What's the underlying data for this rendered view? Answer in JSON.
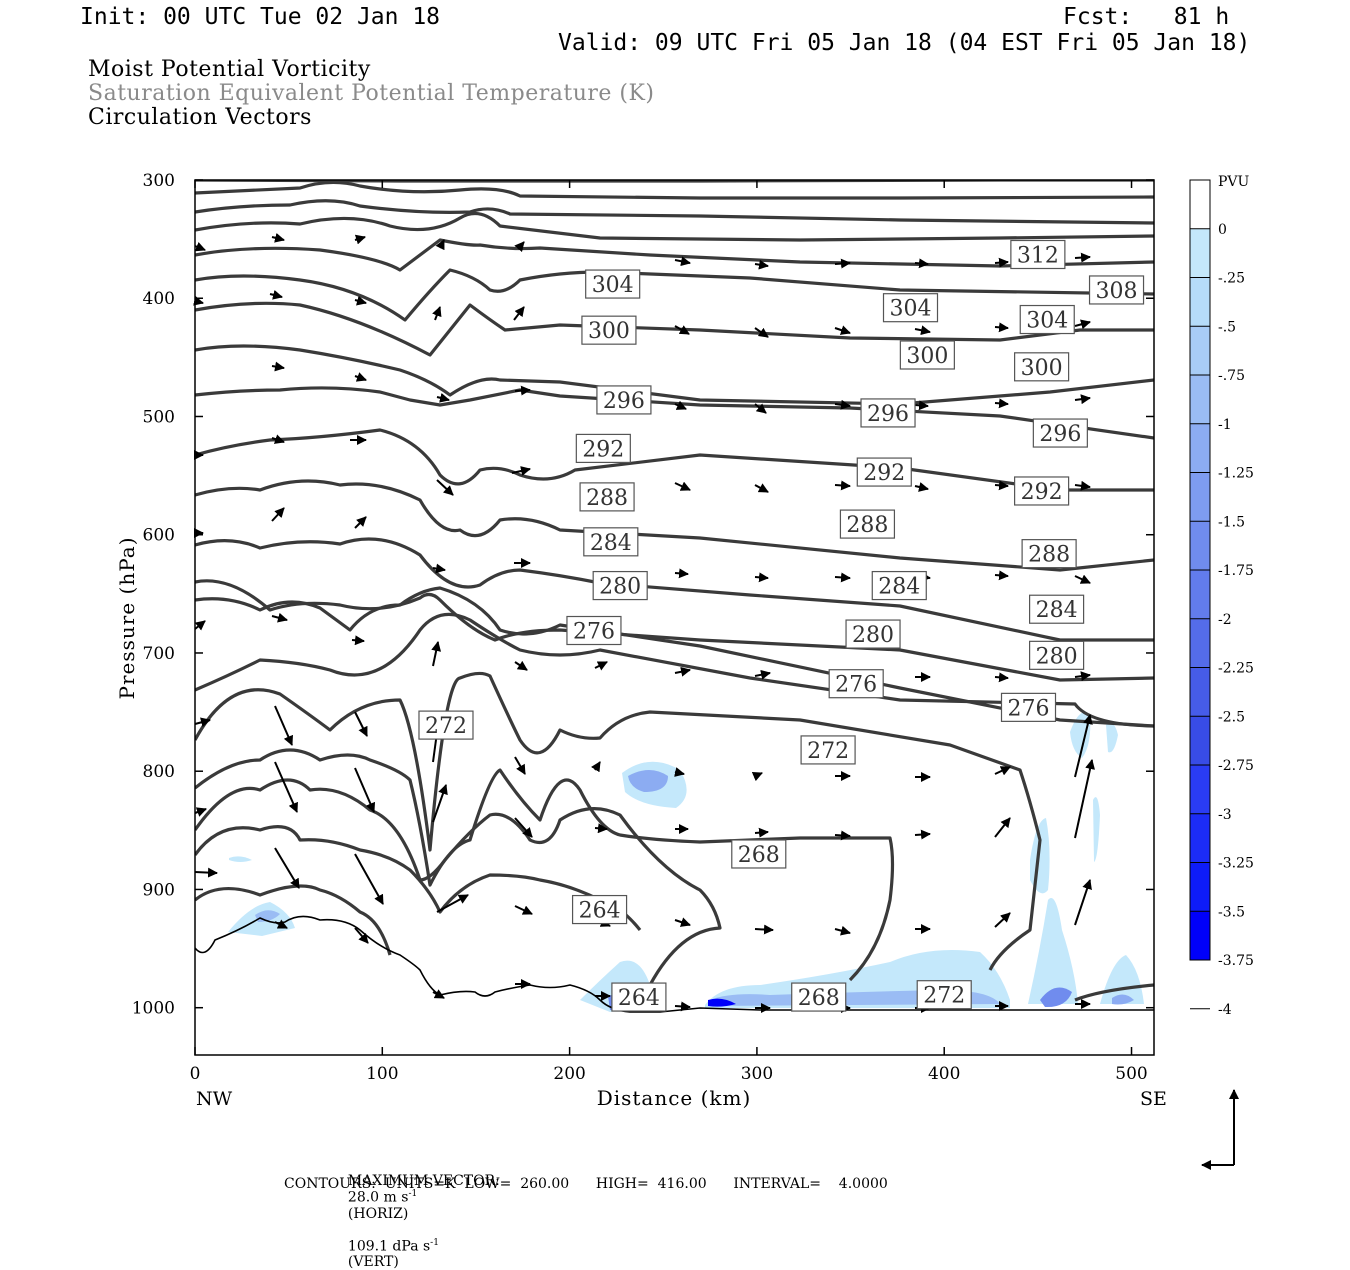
{
  "header": {
    "init": "Init: 00 UTC Tue 02 Jan 18",
    "fcst": "Fcst:   81 h",
    "valid": "Valid: 09 UTC Fri 05 Jan 18 (04 EST Fri 05 Jan 18)"
  },
  "titles": {
    "line1": "Moist Potential Vorticity",
    "line2": "Saturation Equivalent Potential Temperature (K)",
    "line3": "Circulation Vectors"
  },
  "footer": {
    "max_vector_label": "MAXIMUM VECTOR:",
    "max_vector_horiz": "28.0 m s",
    "horiz_tag": "(HORIZ)",
    "max_vector_vert": "109.1 dPa s",
    "vert_tag": "(VERT)",
    "contours": "CONTOURS:  UNITS=K  LOW=  260.00      HIGH=  416.00      INTERVAL=    4.0000"
  },
  "colors": {
    "contour": "#3a3a3a",
    "pv_light": "#bfe3fb",
    "pv_dark": "#0000f0"
  },
  "chart_data": {
    "type": "contour",
    "ylabel": "Pressure (hPa)",
    "xlabel": "Distance (km)",
    "x_left_label": "NW",
    "x_right_label": "SE",
    "xlim": [
      0,
      512
    ],
    "ylim": [
      1040,
      300
    ],
    "x_ticks": [
      0,
      100,
      200,
      300,
      400,
      500
    ],
    "y_ticks": [
      300,
      400,
      500,
      600,
      700,
      800,
      900,
      1000
    ],
    "colorbar": {
      "unit": "PVU",
      "ticks": [
        "0",
        "-.25",
        "-.5",
        "-.75",
        "-1",
        "-1.25",
        "-1.5",
        "-1.75",
        "-2",
        "-2.25",
        "-2.5",
        "-2.75",
        "-3",
        "-3.25",
        "-3.5",
        "-3.75",
        "-4"
      ],
      "colors": [
        "#ffffff",
        "#c4e8fb",
        "#b6dcf9",
        "#a8ccf6",
        "#9abcf4",
        "#8cacf2",
        "#7e9cf0",
        "#708cee",
        "#627cec",
        "#546cea",
        "#465ce8",
        "#384ce6",
        "#2a3cf4",
        "#1c2cf6",
        "#0e1cf8",
        "#0000fa"
      ]
    },
    "contour_labels": [
      {
        "value": "312",
        "x": 450,
        "p": 363
      },
      {
        "value": "308",
        "x": 492,
        "p": 393
      },
      {
        "value": "304",
        "x": 223,
        "p": 388
      },
      {
        "value": "304",
        "x": 382,
        "p": 408
      },
      {
        "value": "304",
        "x": 455,
        "p": 418
      },
      {
        "value": "300",
        "x": 221,
        "p": 427
      },
      {
        "value": "300",
        "x": 391,
        "p": 448
      },
      {
        "value": "300",
        "x": 452,
        "p": 458
      },
      {
        "value": "296",
        "x": 229,
        "p": 486
      },
      {
        "value": "296",
        "x": 370,
        "p": 497
      },
      {
        "value": "296",
        "x": 462,
        "p": 514
      },
      {
        "value": "292",
        "x": 218,
        "p": 527
      },
      {
        "value": "292",
        "x": 368,
        "p": 547
      },
      {
        "value": "292",
        "x": 452,
        "p": 563
      },
      {
        "value": "288",
        "x": 220,
        "p": 568
      },
      {
        "value": "288",
        "x": 359,
        "p": 591
      },
      {
        "value": "288",
        "x": 456,
        "p": 616
      },
      {
        "value": "284",
        "x": 222,
        "p": 606
      },
      {
        "value": "284",
        "x": 376,
        "p": 643
      },
      {
        "value": "284",
        "x": 460,
        "p": 663
      },
      {
        "value": "280",
        "x": 227,
        "p": 643
      },
      {
        "value": "280",
        "x": 362,
        "p": 684
      },
      {
        "value": "280",
        "x": 460,
        "p": 702
      },
      {
        "value": "276",
        "x": 213,
        "p": 681
      },
      {
        "value": "276",
        "x": 353,
        "p": 726
      },
      {
        "value": "276",
        "x": 445,
        "p": 746
      },
      {
        "value": "272",
        "x": 134,
        "p": 761
      },
      {
        "value": "272",
        "x": 338,
        "p": 782
      },
      {
        "value": "268",
        "x": 301,
        "p": 870
      },
      {
        "value": "264",
        "x": 216,
        "p": 917
      },
      {
        "value": "264",
        "x": 237,
        "p": 991
      },
      {
        "value": "268",
        "x": 333,
        "p": 991
      },
      {
        "value": "272",
        "x": 400,
        "p": 989
      }
    ]
  }
}
